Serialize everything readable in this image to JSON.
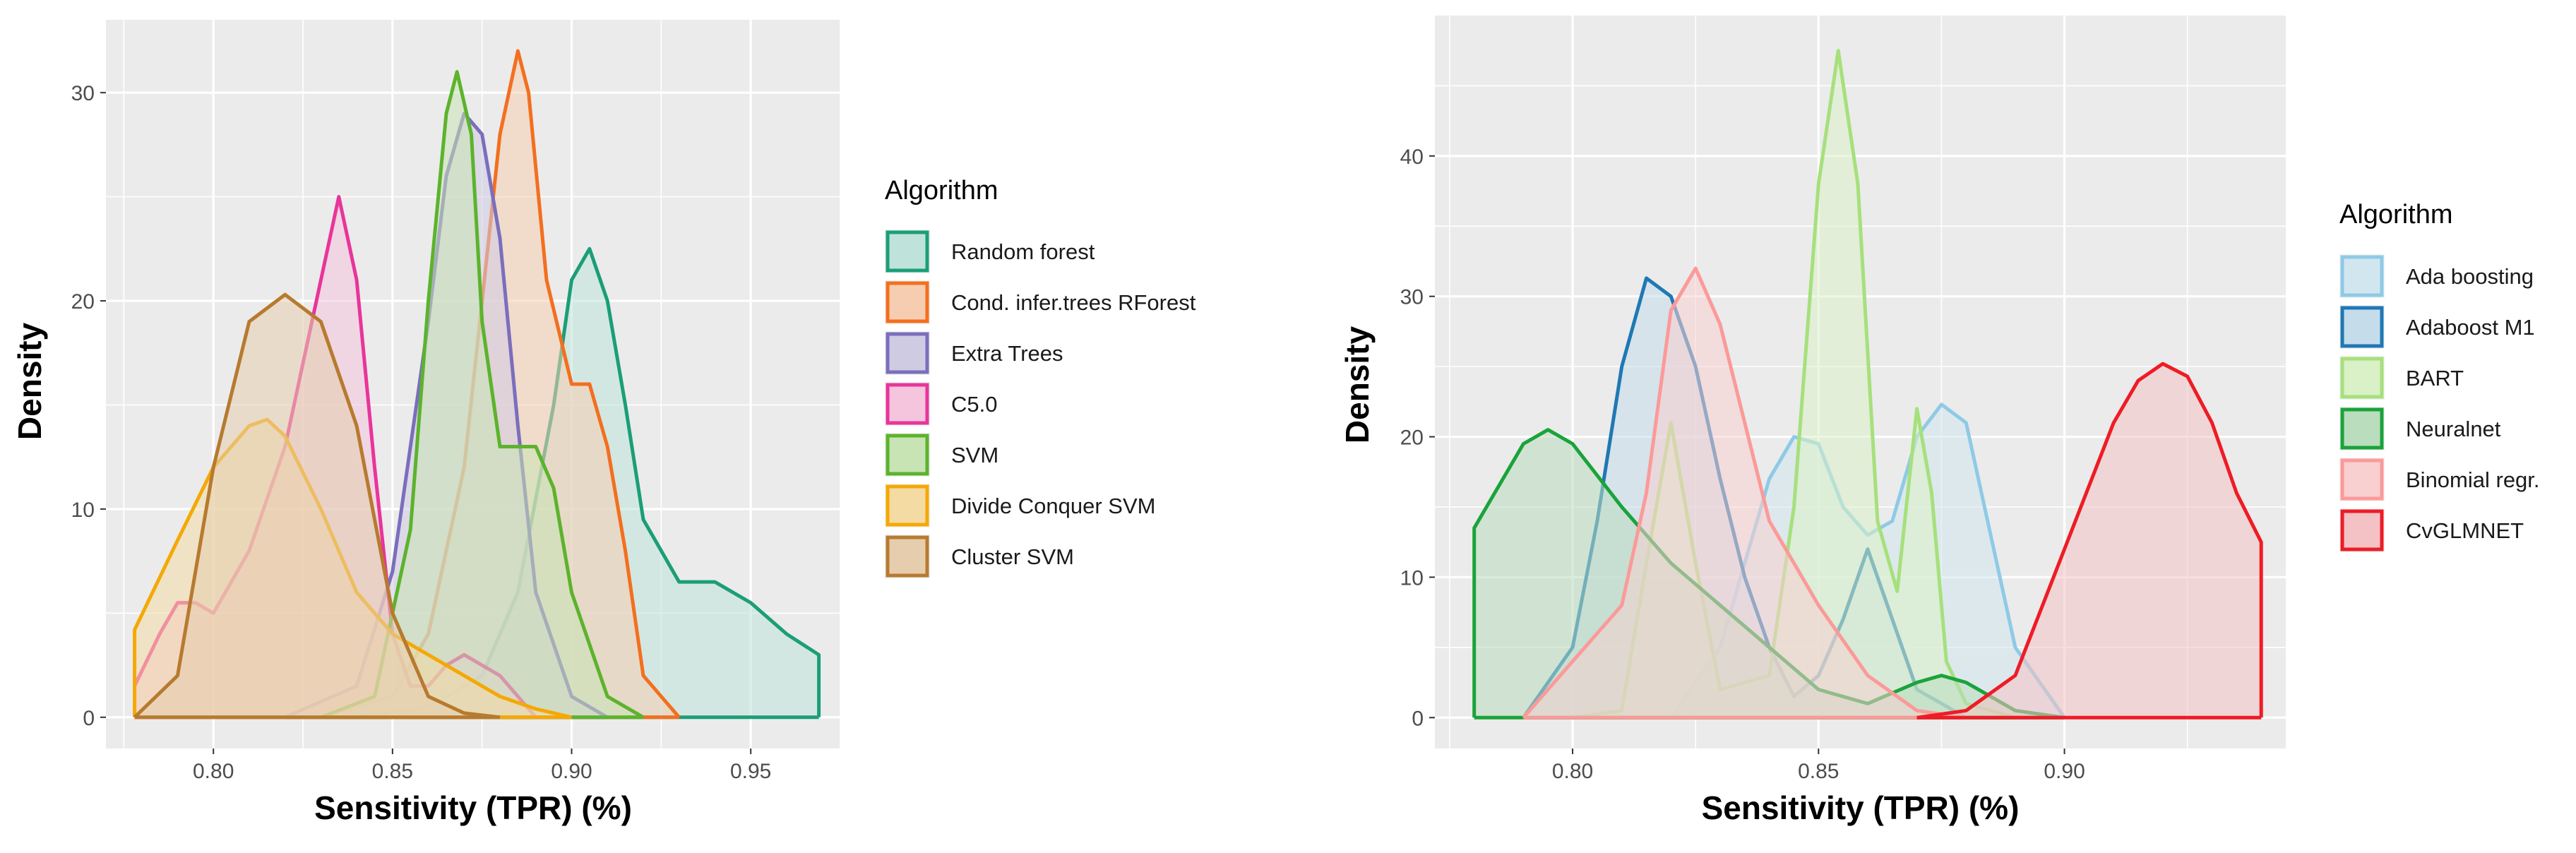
{
  "chart_data": [
    {
      "type": "area",
      "chart_kind": "density",
      "xlabel": "Sensitivity (TPR) (%)",
      "ylabel": "Density",
      "xlim": [
        0.77,
        0.975
      ],
      "ylim": [
        -1.5,
        33.5
      ],
      "xticks": [
        0.8,
        0.85,
        0.9,
        0.95
      ],
      "xtick_labels": [
        "0.80",
        "0.85",
        "0.90",
        "0.95"
      ],
      "yticks": [
        0,
        10,
        20,
        30
      ],
      "ytick_labels": [
        "0",
        "10",
        "20",
        "30"
      ],
      "grid": true,
      "legend": {
        "title": "Algorithm",
        "position": "right"
      },
      "series": [
        {
          "name": "Random forest",
          "color": "#1b9e77",
          "fill": "#bfe3da",
          "x": [
            0.84,
            0.86,
            0.875,
            0.885,
            0.895,
            0.9,
            0.905,
            0.91,
            0.915,
            0.92,
            0.93,
            0.94,
            0.95,
            0.96,
            0.969,
            0.969
          ],
          "y": [
            0,
            0.5,
            2,
            6,
            15,
            21,
            22.5,
            20,
            15,
            9.5,
            6.5,
            6.5,
            5.5,
            4,
            3,
            0
          ]
        },
        {
          "name": "Cond. infer.trees RForest",
          "color": "#f36f1f",
          "fill": "#f6cdb0",
          "x": [
            0.83,
            0.85,
            0.86,
            0.87,
            0.875,
            0.88,
            0.885,
            0.888,
            0.893,
            0.9,
            0.905,
            0.91,
            0.915,
            0.92,
            0.93
          ],
          "y": [
            0,
            1,
            4,
            12,
            20,
            28,
            32,
            30,
            21,
            16,
            16,
            13,
            8,
            2,
            0
          ]
        },
        {
          "name": "Extra Trees",
          "color": "#7b6ebc",
          "fill": "#cfcbe3",
          "x": [
            0.82,
            0.84,
            0.85,
            0.86,
            0.865,
            0.87,
            0.875,
            0.88,
            0.885,
            0.89,
            0.9,
            0.91
          ],
          "y": [
            0,
            1.5,
            7,
            19,
            26,
            29,
            28,
            23,
            14,
            6,
            1,
            0
          ]
        },
        {
          "name": "C5.0",
          "color": "#e8359a",
          "fill": "#f4c5dd",
          "x": [
            0.778,
            0.785,
            0.79,
            0.795,
            0.8,
            0.81,
            0.82,
            0.83,
            0.835,
            0.84,
            0.845,
            0.85,
            0.855,
            0.86,
            0.865,
            0.87,
            0.88,
            0.89
          ],
          "y": [
            1.5,
            4,
            5.5,
            5.5,
            5,
            8,
            13,
            21,
            25,
            21,
            12,
            4,
            1.5,
            1.5,
            2.5,
            3,
            2,
            0
          ]
        },
        {
          "name": "SVM",
          "color": "#5cb32c",
          "fill": "#c8e3b4",
          "x": [
            0.83,
            0.845,
            0.855,
            0.86,
            0.865,
            0.868,
            0.872,
            0.875,
            0.88,
            0.885,
            0.89,
            0.895,
            0.9,
            0.91,
            0.92
          ],
          "y": [
            0,
            1,
            9,
            20,
            29,
            31,
            28,
            19,
            13,
            13,
            13,
            11,
            6,
            1,
            0
          ]
        },
        {
          "name": "Divide Conquer SVM",
          "color": "#f5a805",
          "fill": "#f4dba4",
          "x": [
            0.778,
            0.778,
            0.79,
            0.8,
            0.81,
            0.815,
            0.82,
            0.83,
            0.84,
            0.85,
            0.86,
            0.87,
            0.88,
            0.89,
            0.9
          ],
          "y": [
            0,
            4.2,
            8.5,
            12,
            14,
            14.3,
            13.5,
            10,
            6,
            4,
            3,
            2,
            1,
            0.4,
            0
          ]
        },
        {
          "name": "Cluster SVM",
          "color": "#b77a2f",
          "fill": "#e6cdae",
          "x": [
            0.778,
            0.79,
            0.8,
            0.81,
            0.82,
            0.83,
            0.84,
            0.85,
            0.86,
            0.87,
            0.88
          ],
          "y": [
            0,
            2,
            12,
            19,
            20.3,
            19,
            14,
            5,
            1,
            0.2,
            0
          ]
        }
      ]
    },
    {
      "type": "area",
      "chart_kind": "density",
      "xlabel": "Sensitivity (TPR) (%)",
      "ylabel": "Density",
      "xlim": [
        0.772,
        0.945
      ],
      "ylim": [
        -2.2,
        50
      ],
      "xticks": [
        0.8,
        0.85,
        0.9
      ],
      "xtick_labels": [
        "0.80",
        "0.85",
        "0.90"
      ],
      "yticks": [
        0,
        10,
        20,
        30,
        40
      ],
      "ytick_labels": [
        "0",
        "10",
        "20",
        "30",
        "40"
      ],
      "grid": true,
      "legend": {
        "title": "Algorithm",
        "position": "right"
      },
      "series": [
        {
          "name": "Ada boosting",
          "color": "#8ecae6",
          "fill": "#d2e6ef",
          "x": [
            0.82,
            0.83,
            0.84,
            0.845,
            0.85,
            0.855,
            0.86,
            0.865,
            0.87,
            0.875,
            0.88,
            0.885,
            0.89,
            0.9
          ],
          "y": [
            0,
            5,
            17,
            20,
            19.5,
            15,
            13,
            14,
            20,
            22.3,
            21,
            13,
            5,
            0
          ]
        },
        {
          "name": "Adaboost M1",
          "color": "#1f78b4",
          "fill": "#c5dcea",
          "x": [
            0.79,
            0.8,
            0.805,
            0.81,
            0.815,
            0.82,
            0.825,
            0.83,
            0.835,
            0.84,
            0.845,
            0.85,
            0.855,
            0.86,
            0.865,
            0.87,
            0.88
          ],
          "y": [
            0,
            5,
            14,
            25,
            31.3,
            30,
            25,
            17,
            10,
            5,
            1.5,
            3,
            7,
            12,
            7,
            2,
            0
          ]
        },
        {
          "name": "BART",
          "color": "#a6e07c",
          "fill": "#daf0c6",
          "x": [
            0.8,
            0.81,
            0.815,
            0.82,
            0.825,
            0.83,
            0.84,
            0.845,
            0.85,
            0.854,
            0.858,
            0.862,
            0.866,
            0.87,
            0.873,
            0.876,
            0.88,
            0.89
          ],
          "y": [
            0,
            0.5,
            11,
            21,
            11,
            2,
            3,
            15,
            38,
            47.5,
            38,
            14,
            9,
            22,
            16,
            4,
            1,
            0
          ]
        },
        {
          "name": "Neuralnet",
          "color": "#1aa33a",
          "fill": "#b9ddbd",
          "x": [
            0.78,
            0.78,
            0.79,
            0.795,
            0.8,
            0.81,
            0.82,
            0.83,
            0.84,
            0.85,
            0.86,
            0.87,
            0.875,
            0.88,
            0.89,
            0.9
          ],
          "y": [
            0,
            13.5,
            19.5,
            20.5,
            19.5,
            15,
            11,
            8,
            5,
            2,
            1,
            2.5,
            3,
            2.5,
            0.5,
            0
          ]
        },
        {
          "name": "Binomial regr.",
          "color": "#fb9a99",
          "fill": "#f7d0cf",
          "x": [
            0.79,
            0.8,
            0.81,
            0.815,
            0.82,
            0.825,
            0.83,
            0.835,
            0.84,
            0.845,
            0.85,
            0.86,
            0.87,
            0.88
          ],
          "y": [
            0,
            4,
            8,
            16,
            29,
            32,
            28,
            21,
            14,
            11,
            8,
            3,
            0.5,
            0
          ]
        },
        {
          "name": "CvGLMNET",
          "color": "#ee1c25",
          "fill": "#f4c2c4",
          "x": [
            0.87,
            0.88,
            0.89,
            0.9,
            0.91,
            0.915,
            0.92,
            0.925,
            0.93,
            0.935,
            0.94,
            0.94
          ],
          "y": [
            0,
            0.5,
            3,
            12,
            21,
            24,
            25.2,
            24.3,
            21,
            16,
            12.5,
            0
          ]
        }
      ]
    }
  ]
}
